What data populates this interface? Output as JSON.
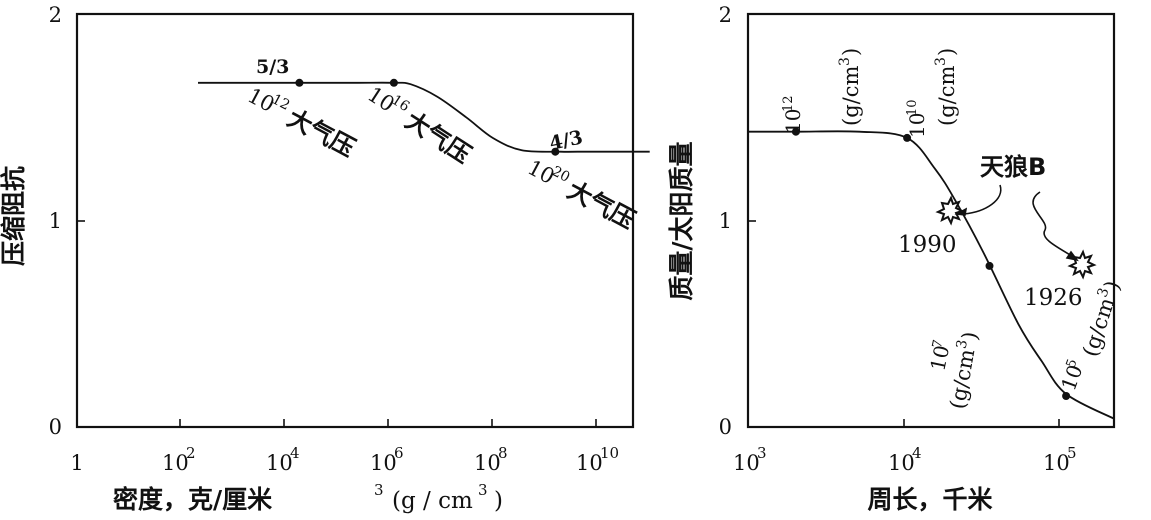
{
  "chart_data": [
    {
      "type": "line",
      "xlabel": "密度，克/厘米³ (g/cm³)",
      "ylabel": "压缩阻抗",
      "x_scale": "log",
      "xlim": [
        1,
        10000000000.0
      ],
      "ylim": [
        0,
        2
      ],
      "x_tick_labels": [
        "1",
        "10²",
        "10⁴",
        "10⁶",
        "10⁸",
        "10¹⁰"
      ],
      "y_tick_labels": [
        "0",
        "1",
        "2"
      ],
      "grid": false,
      "series": [
        {
          "x": [
            150.0,
            1000.0,
            10000.0,
            100000.0,
            500000.0,
            1000000.0,
            3000000.0,
            10000000.0,
            30000000.0,
            100000000.0,
            500000000.0,
            1000000000.0,
            10000000000.0,
            20000000000.0
          ],
          "y": [
            1.667,
            1.667,
            1.667,
            1.667,
            1.667,
            1.66,
            1.6,
            1.5,
            1.4,
            1.34,
            1.333,
            1.333,
            1.333,
            1.333
          ],
          "markers": [
            {
              "x": 10000.0,
              "y": 1.667
            },
            {
              "x": 500000.0,
              "y": 1.667
            },
            {
              "x": 400000000.0,
              "y": 1.333
            }
          ]
        }
      ],
      "annotations": [
        {
          "text": "5/3",
          "at": "upper plateau"
        },
        {
          "text": "4/3",
          "at": "lower plateau"
        },
        {
          "text": "10¹² 大气压",
          "at": "first point"
        },
        {
          "text": "10¹⁶ 大气压",
          "at": "second point"
        },
        {
          "text": "10²⁰ 大气压",
          "at": "third point"
        }
      ]
    },
    {
      "type": "line",
      "xlabel": "周长，千米",
      "ylabel": "质量/太阳质量",
      "x_scale": "log",
      "xlim": [
        1000.0,
        200000.0
      ],
      "ylim": [
        0,
        2
      ],
      "x_tick_labels": [
        "10³",
        "10⁴",
        "10⁵"
      ],
      "y_tick_labels": [
        "0",
        "1",
        "2"
      ],
      "grid": false,
      "series": [
        {
          "x": [
            1000.0,
            2000.0,
            5000.0,
            10000.0,
            15000.0,
            20000.0,
            30000.0,
            50000.0,
            70000.0,
            100000.0,
            200000.0
          ],
          "y": [
            1.43,
            1.43,
            1.43,
            1.4,
            1.25,
            1.1,
            0.85,
            0.5,
            0.32,
            0.16,
            0.04
          ],
          "markers": [
            {
              "x": 2000.0,
              "y": 1.43
            },
            {
              "x": 10000.0,
              "y": 1.4
            },
            {
              "x": 33000.0,
              "y": 0.78
            },
            {
              "x": 100000.0,
              "y": 0.15
            }
          ]
        }
      ],
      "observations": [
        {
          "name": "天狼B",
          "year": "1990",
          "x": 19000.0,
          "y": 1.05
        },
        {
          "name": "天狼B",
          "year": "1926",
          "x": 150000.0,
          "y": 0.77
        }
      ],
      "annotations": [
        {
          "text": "10¹² (g/cm³)"
        },
        {
          "text": "10¹⁰ (g/cm³)"
        },
        {
          "text": "10⁷ (g/cm³)"
        },
        {
          "text": "10⁵ (g/cm³)"
        },
        {
          "text": "天狼B"
        }
      ]
    }
  ],
  "text": {
    "left": {
      "ylabel": "压缩阻抗",
      "xlabel": "密度，克/厘米",
      "xlabel_sup": "3",
      "xlabel_units": "(g / cm",
      "xlabel_units_sup": "3",
      "xlabel_units_close": ")",
      "frac_upper": "5/3",
      "frac_lower": "4/3",
      "p1_exp": "10",
      "p1_sup": "12",
      "p2_exp": "10",
      "p2_sup": "16",
      "p3_exp": "10",
      "p3_sup": "20",
      "atm": "大气压",
      "y0": "0",
      "y1": "1",
      "y2": "2",
      "x_base": "10",
      "x0": "1",
      "x2": "2",
      "x4": "4",
      "x6": "6",
      "x8": "8",
      "x10": "10"
    },
    "right": {
      "ylabel": "质量/太阳质量",
      "xlabel": "周长，千米",
      "y0": "0",
      "y1": "1",
      "y2": "2",
      "x_base": "10",
      "x3": "3",
      "x4": "4",
      "x5": "5",
      "d12": "12",
      "d10": "10",
      "d7": "7",
      "d5": "5",
      "unit_open": "(g/cm",
      "unit_sup": "3",
      "unit_close": ")",
      "sirius": "天狼B",
      "y1990": "1990",
      "y1926": "1926"
    }
  }
}
